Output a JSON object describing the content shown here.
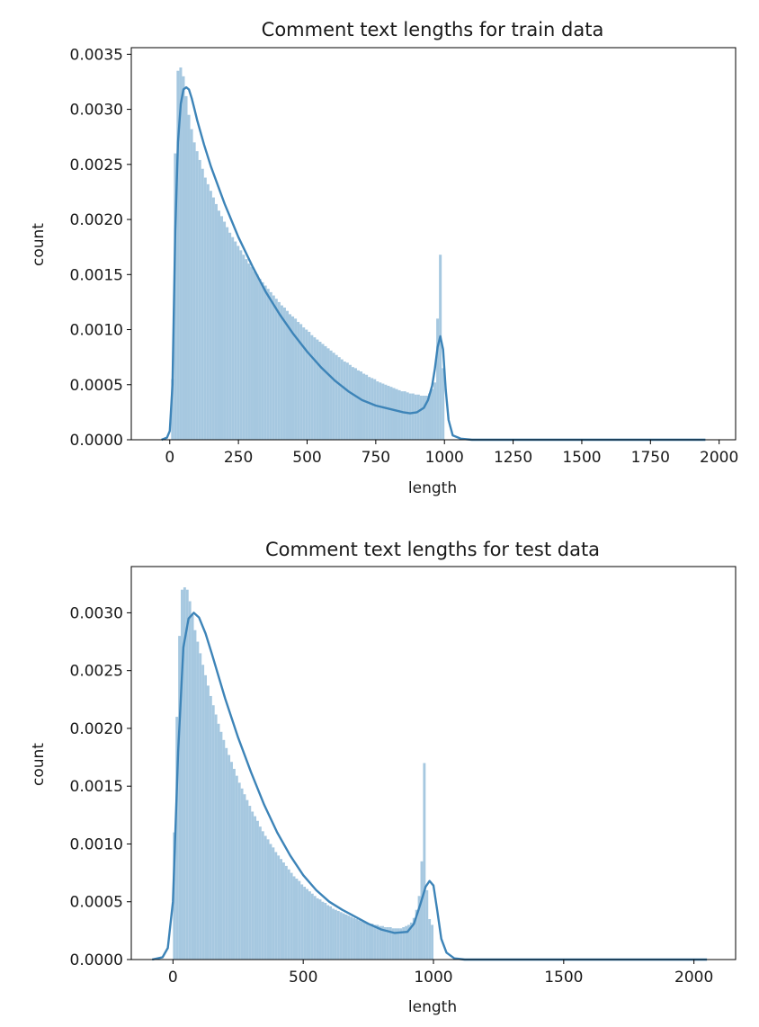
{
  "charts": [
    {
      "title": "Comment text lengths for train data",
      "xlabel": "length",
      "ylabel": "count"
    },
    {
      "title": "Comment text lengths for test data",
      "xlabel": "length",
      "ylabel": "count"
    }
  ],
  "chart_data": [
    {
      "type": "histogram+kde",
      "title": "Comment text lengths for train data",
      "xlabel": "length",
      "ylabel": "count",
      "xlim": [
        -140,
        2060
      ],
      "ylim": [
        0,
        0.00356
      ],
      "xticks": [
        0,
        250,
        500,
        750,
        1000,
        1250,
        1500,
        1750,
        2000
      ],
      "xtick_labels": [
        "0",
        "250",
        "500",
        "750",
        "1000",
        "1250",
        "1500",
        "1750",
        "2000"
      ],
      "yticks": [
        0,
        0.0005,
        0.001,
        0.0015,
        0.002,
        0.0025,
        0.003,
        0.0035
      ],
      "ytick_labels": [
        "0.0000",
        "0.0005",
        "0.0010",
        "0.0015",
        "0.0020",
        "0.0025",
        "0.0030",
        "0.0035"
      ],
      "bar_color": "#a6c8e0",
      "line_color": "#3d84b8",
      "hist_range": [
        5,
        1000
      ],
      "bins": 100,
      "hist_values": [
        0.00055,
        0.0026,
        0.00335,
        0.00338,
        0.0033,
        0.00312,
        0.00295,
        0.00282,
        0.0027,
        0.00262,
        0.00254,
        0.00246,
        0.00238,
        0.00232,
        0.00226,
        0.0022,
        0.00214,
        0.00208,
        0.00203,
        0.00198,
        0.00193,
        0.00188,
        0.00184,
        0.0018,
        0.00176,
        0.00172,
        0.00168,
        0.00164,
        0.0016,
        0.00157,
        0.00153,
        0.0015,
        0.00146,
        0.00143,
        0.0014,
        0.00137,
        0.00134,
        0.00131,
        0.00128,
        0.00125,
        0.00122,
        0.0012,
        0.00117,
        0.00114,
        0.00112,
        0.0011,
        0.00107,
        0.00105,
        0.00102,
        0.001,
        0.00098,
        0.00095,
        0.00093,
        0.00091,
        0.00089,
        0.00087,
        0.00085,
        0.00083,
        0.00081,
        0.00079,
        0.00077,
        0.00075,
        0.00073,
        0.00071,
        0.0007,
        0.00068,
        0.00066,
        0.00065,
        0.00063,
        0.00062,
        0.0006,
        0.00059,
        0.00057,
        0.00056,
        0.00055,
        0.00053,
        0.00052,
        0.00051,
        0.0005,
        0.00049,
        0.00048,
        0.00047,
        0.00046,
        0.00045,
        0.00044,
        0.00044,
        0.00043,
        0.00042,
        0.00042,
        0.00041,
        0.00041,
        0.0004,
        0.0004,
        0.0004,
        0.00042,
        0.00046,
        0.00052,
        0.0011,
        0.00168,
        0.00065
      ],
      "kde_x": [
        -30,
        -10,
        0,
        10,
        20,
        30,
        40,
        50,
        60,
        70,
        80,
        90,
        100,
        125,
        150,
        200,
        250,
        300,
        350,
        400,
        450,
        500,
        550,
        600,
        650,
        700,
        750,
        800,
        850,
        875,
        900,
        925,
        940,
        955,
        965,
        975,
        985,
        995,
        1005,
        1015,
        1030,
        1060,
        1100,
        1300,
        1600,
        1950
      ],
      "kde_y": [
        0,
        2e-05,
        8e-05,
        0.0005,
        0.0019,
        0.0027,
        0.00305,
        0.00318,
        0.0032,
        0.00318,
        0.0031,
        0.003,
        0.0029,
        0.00268,
        0.00248,
        0.00214,
        0.00184,
        0.00158,
        0.00134,
        0.00114,
        0.00096,
        0.0008,
        0.00066,
        0.00054,
        0.00044,
        0.00036,
        0.00031,
        0.00028,
        0.00025,
        0.00024,
        0.00025,
        0.00029,
        0.00036,
        0.00049,
        0.00064,
        0.00084,
        0.00094,
        0.00082,
        0.00045,
        0.00018,
        4e-05,
        1e-05,
        0,
        0,
        0,
        0
      ]
    },
    {
      "type": "histogram+kde",
      "title": "Comment text lengths for test data",
      "xlabel": "length",
      "ylabel": "count",
      "xlim": [
        -160,
        2160
      ],
      "ylim": [
        0,
        0.0034
      ],
      "xticks": [
        0,
        500,
        1000,
        1500,
        2000
      ],
      "xtick_labels": [
        "0",
        "500",
        "1000",
        "1500",
        "2000"
      ],
      "yticks": [
        0,
        0.0005,
        0.001,
        0.0015,
        0.002,
        0.0025,
        0.003
      ],
      "ytick_labels": [
        "0.0000",
        "0.0005",
        "0.0010",
        "0.0015",
        "0.0020",
        "0.0025",
        "0.0030"
      ],
      "bar_color": "#a6c8e0",
      "line_color": "#3d84b8",
      "hist_range": [
        0,
        1000
      ],
      "bins": 100,
      "hist_values": [
        0.0011,
        0.0021,
        0.0028,
        0.0032,
        0.00322,
        0.0032,
        0.0031,
        0.00298,
        0.00285,
        0.00275,
        0.00265,
        0.00255,
        0.00246,
        0.00237,
        0.00228,
        0.0022,
        0.00212,
        0.00204,
        0.00197,
        0.0019,
        0.00183,
        0.00177,
        0.00171,
        0.00165,
        0.00159,
        0.00153,
        0.00148,
        0.00143,
        0.00138,
        0.00133,
        0.00128,
        0.00124,
        0.0012,
        0.00115,
        0.00111,
        0.00107,
        0.00104,
        0.001,
        0.00097,
        0.00093,
        0.0009,
        0.00087,
        0.00084,
        0.00081,
        0.00078,
        0.00075,
        0.00072,
        0.0007,
        0.00068,
        0.00065,
        0.00063,
        0.00061,
        0.00059,
        0.00057,
        0.00055,
        0.00053,
        0.00052,
        0.0005,
        0.00049,
        0.00047,
        0.00046,
        0.00044,
        0.00043,
        0.00042,
        0.00041,
        0.0004,
        0.00039,
        0.00038,
        0.00037,
        0.00036,
        0.00035,
        0.00034,
        0.00033,
        0.00033,
        0.00032,
        0.00031,
        0.00031,
        0.0003,
        0.0003,
        0.00029,
        0.00029,
        0.00028,
        0.00028,
        0.00028,
        0.00027,
        0.00027,
        0.00027,
        0.00027,
        0.00028,
        0.00029,
        0.0003,
        0.00032,
        0.00036,
        0.00043,
        0.00055,
        0.00085,
        0.0017,
        0.0006,
        0.00035,
        0.0003
      ],
      "kde_x": [
        -80,
        -40,
        -20,
        0,
        20,
        40,
        60,
        80,
        100,
        125,
        150,
        200,
        250,
        300,
        350,
        400,
        450,
        500,
        550,
        600,
        650,
        700,
        750,
        800,
        850,
        900,
        925,
        950,
        970,
        985,
        1000,
        1015,
        1030,
        1050,
        1080,
        1120,
        1300,
        1600,
        2050
      ],
      "kde_y": [
        0,
        2e-05,
        0.0001,
        0.0005,
        0.0018,
        0.0027,
        0.00295,
        0.003,
        0.00296,
        0.00282,
        0.00264,
        0.00226,
        0.00192,
        0.00162,
        0.00134,
        0.0011,
        0.0009,
        0.00073,
        0.0006,
        0.0005,
        0.00043,
        0.00037,
        0.00031,
        0.00026,
        0.00023,
        0.00024,
        0.00031,
        0.00048,
        0.00063,
        0.00068,
        0.00064,
        0.00042,
        0.00018,
        6e-05,
        1e-05,
        0,
        0,
        0,
        0
      ]
    }
  ]
}
